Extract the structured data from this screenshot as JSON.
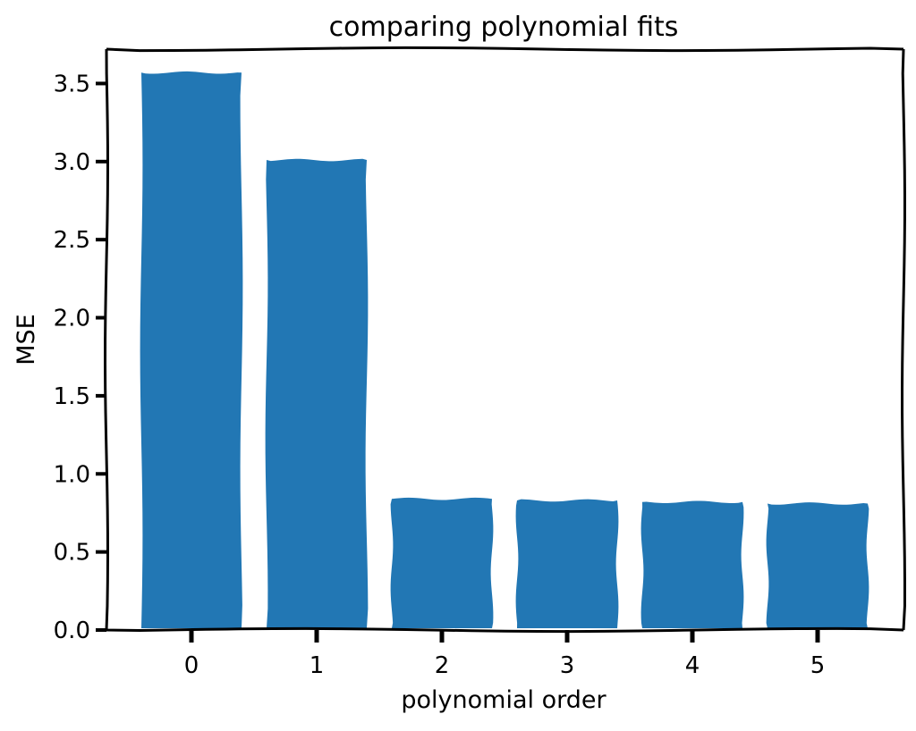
{
  "chart_data": {
    "type": "bar",
    "title": "comparing polynomial fits",
    "xlabel": "polynomial order",
    "ylabel": "MSE",
    "categories": [
      "0",
      "1",
      "2",
      "3",
      "4",
      "5"
    ],
    "values": [
      3.57,
      3.01,
      0.84,
      0.83,
      0.82,
      0.81
    ],
    "ylim": [
      0,
      3.72
    ],
    "yticks": [
      "0.0",
      "0.5",
      "1.0",
      "1.5",
      "2.0",
      "2.5",
      "3.0",
      "3.5"
    ],
    "grid": false,
    "bar_color": "#2277b4",
    "style": "xkcd"
  }
}
